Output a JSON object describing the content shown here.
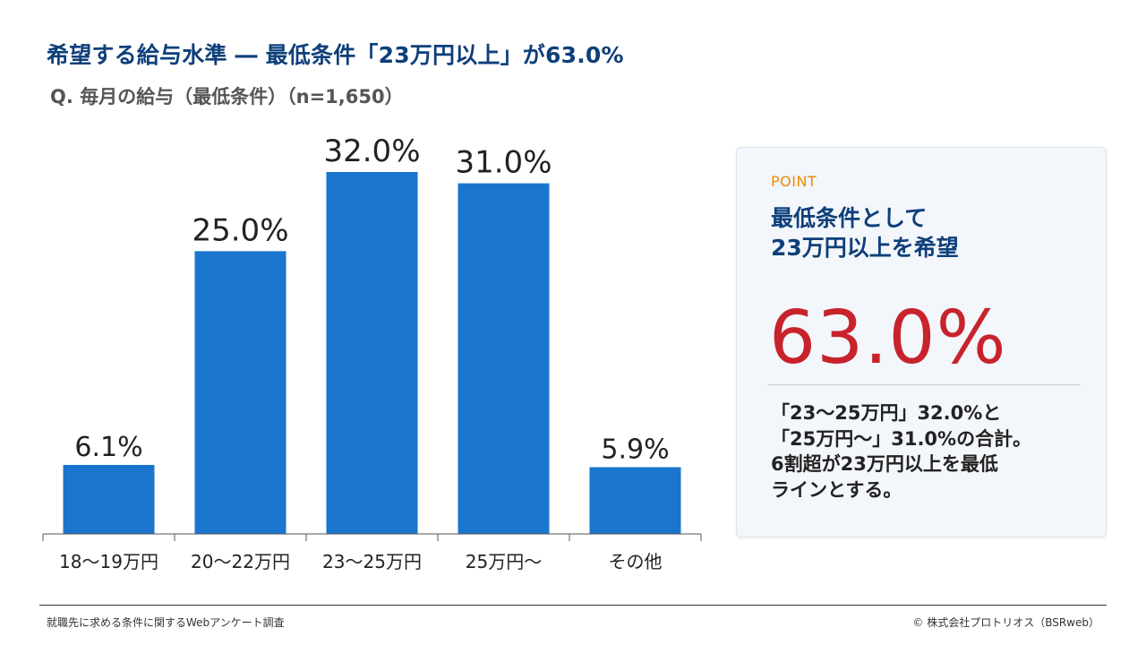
{
  "header": {
    "title": "希望する給与水準 ― 最低条件「23万円以上」が63.0%",
    "subtitle": "Q. 毎月の給与（最低条件）（n=1,650）"
  },
  "chart_data": {
    "type": "bar",
    "title": "希望する給与水準 ― 最低条件「23万円以上」が63.0%",
    "subtitle": "Q. 毎月の給与（最低条件）（n=1,650）",
    "categories": [
      "18〜19万円",
      "20〜22万円",
      "23〜25万円",
      "25万円〜",
      "その他"
    ],
    "values": [
      6.1,
      25.0,
      32.0,
      31.0,
      5.9
    ],
    "data_labels": [
      "6.1%",
      "25.0%",
      "32.0%",
      "31.0%",
      "5.9%"
    ],
    "unit": "%",
    "ylim": [
      0,
      32
    ],
    "grid": false,
    "bar_color": "#1a75cf"
  },
  "point": {
    "tag": "POINT",
    "heading_lines": [
      "最低条件として",
      "23万円以上を希望"
    ],
    "big_value": "63.0%",
    "body_lines": [
      "「23〜25万円」32.0%と",
      "「25万円〜」31.0%の合計。",
      "6割超が23万円以上を最低",
      "ラインとする。"
    ]
  },
  "footer": {
    "source": "就職先に求める条件に関するWebアンケート調査",
    "copyright": "©  株式会社プロトリオス（BSRweb）"
  },
  "colors": {
    "title": "#0e3f7a",
    "bar": "#1a75cf",
    "accent_orange": "#ef8a00",
    "accent_red": "#c8232c",
    "card_bg": "#f3f6fa"
  }
}
